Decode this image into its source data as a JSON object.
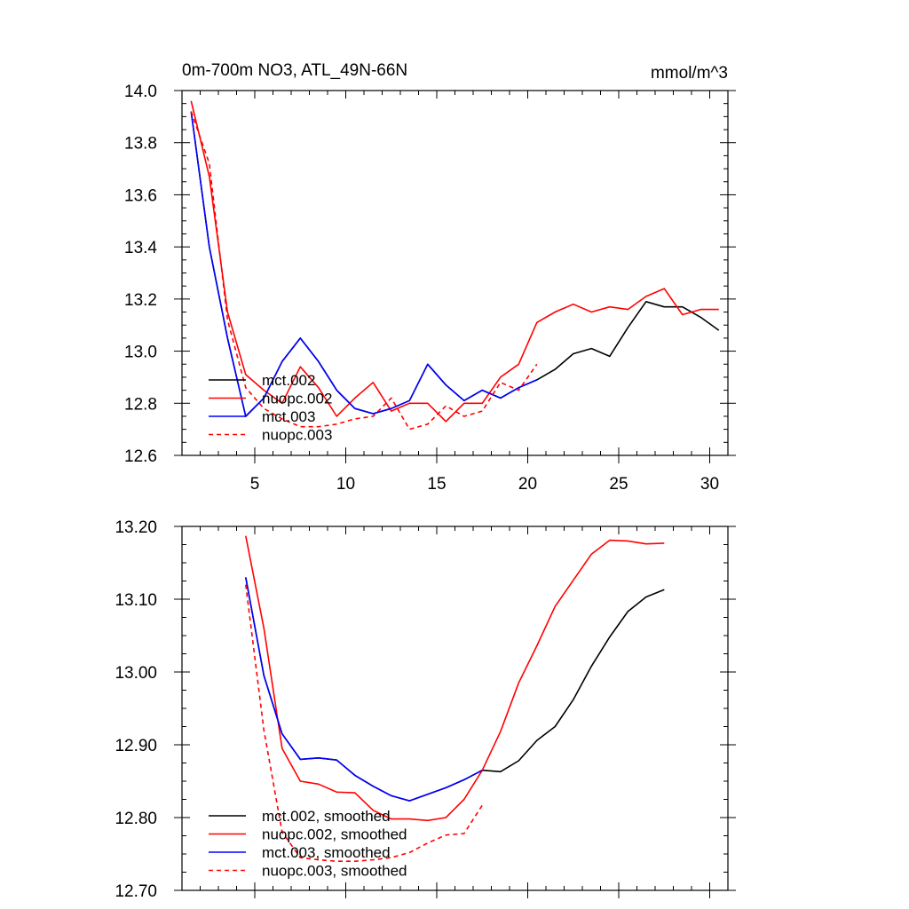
{
  "chart_data": [
    {
      "type": "line",
      "title": "0m-700m NO3, ATL_49N-66N",
      "units": "mmol/m^3",
      "xlim": [
        1,
        31
      ],
      "ylim": [
        12.6,
        14.0
      ],
      "x_ticks": [
        5,
        10,
        15,
        20,
        25,
        30
      ],
      "x_tick_labels": [
        "5",
        "10",
        "15",
        "20",
        "25",
        "30"
      ],
      "y_ticks": [
        12.6,
        12.8,
        13.0,
        13.2,
        13.4,
        13.6,
        13.8,
        14.0
      ],
      "y_tick_labels": [
        "12.6",
        "12.8",
        "13.0",
        "13.2",
        "13.4",
        "13.6",
        "13.8",
        "14.0"
      ],
      "legend_position": "bottom-left",
      "series": [
        {
          "name": "mct.002",
          "color": "#000000",
          "dash": "solid",
          "x": [
            1.5,
            2.5,
            3.5,
            4.5,
            5.5,
            6.5,
            7.5,
            8.5,
            9.5,
            10.5,
            11.5,
            12.5,
            13.5,
            14.5,
            15.5,
            16.5,
            17.5,
            18.5,
            19.5,
            20.5,
            21.5,
            22.5,
            23.5,
            24.5,
            25.5,
            26.5,
            27.5,
            28.5,
            29.5,
            30.5
          ],
          "y": [
            13.92,
            13.4,
            13.05,
            12.75,
            12.82,
            12.96,
            13.05,
            12.96,
            12.85,
            12.78,
            12.76,
            12.78,
            12.81,
            12.95,
            12.87,
            12.81,
            12.85,
            12.82,
            12.86,
            12.89,
            12.93,
            12.99,
            13.01,
            12.98,
            13.09,
            13.19,
            13.17,
            13.17,
            13.13,
            13.08
          ]
        },
        {
          "name": "nuopc.002",
          "color": "#ff0000",
          "dash": "solid",
          "x": [
            1.5,
            2.5,
            3.5,
            4.5,
            5.5,
            6.5,
            7.5,
            8.5,
            9.5,
            10.5,
            11.5,
            12.5,
            13.5,
            14.5,
            15.5,
            16.5,
            17.5,
            18.5,
            19.5,
            20.5,
            21.5,
            22.5,
            23.5,
            24.5,
            25.5,
            26.5,
            27.5,
            28.5,
            29.5,
            30.5
          ],
          "y": [
            13.96,
            13.67,
            13.15,
            12.91,
            12.85,
            12.8,
            12.94,
            12.86,
            12.75,
            12.82,
            12.88,
            12.77,
            12.8,
            12.8,
            12.73,
            12.8,
            12.8,
            12.9,
            12.95,
            13.11,
            13.15,
            13.18,
            13.15,
            13.17,
            13.16,
            13.21,
            13.24,
            13.14,
            13.16,
            13.16
          ]
        },
        {
          "name": "mct.003",
          "color": "#0000ff",
          "dash": "solid",
          "x": [
            1.5,
            2.5,
            3.5,
            4.5,
            5.5,
            6.5,
            7.5,
            8.5,
            9.5,
            10.5,
            11.5,
            12.5,
            13.5,
            14.5,
            15.5,
            16.5,
            17.5,
            18.5,
            19.5,
            20.5
          ],
          "y": [
            13.92,
            13.4,
            13.05,
            12.75,
            12.82,
            12.96,
            13.05,
            12.96,
            12.85,
            12.78,
            12.76,
            12.78,
            12.81,
            12.95,
            12.87,
            12.81,
            12.85,
            12.82,
            12.86,
            12.89
          ]
        },
        {
          "name": "nuopc.003",
          "color": "#ff0000",
          "dash": "dashed",
          "x": [
            1.5,
            2.5,
            3.5,
            4.5,
            5.5,
            6.5,
            7.5,
            8.5,
            9.5,
            10.5,
            11.5,
            12.5,
            13.5,
            14.5,
            15.5,
            16.5,
            17.5,
            18.5,
            19.5,
            20.5
          ],
          "y": [
            13.92,
            13.72,
            13.12,
            12.86,
            12.78,
            12.74,
            12.71,
            12.71,
            12.72,
            12.74,
            12.75,
            12.82,
            12.7,
            12.72,
            12.79,
            12.75,
            12.77,
            12.88,
            12.85,
            12.95
          ]
        }
      ]
    },
    {
      "type": "line",
      "title": "",
      "xlim": [
        1,
        31
      ],
      "ylim": [
        12.7,
        13.2
      ],
      "x_ticks": [
        5,
        10,
        15,
        20,
        25,
        30
      ],
      "y_ticks": [
        12.7,
        12.8,
        12.9,
        13.0,
        13.1,
        13.2
      ],
      "y_tick_labels": [
        "12.70",
        "12.80",
        "12.90",
        "13.00",
        "13.10",
        "13.20"
      ],
      "legend_position": "bottom-left",
      "series": [
        {
          "name": "mct.002, smoothed",
          "color": "#000000",
          "dash": "solid",
          "x": [
            4.5,
            5.5,
            6.5,
            7.5,
            8.5,
            9.5,
            10.5,
            11.5,
            12.5,
            13.5,
            14.5,
            15.5,
            16.5,
            17.5,
            18.5,
            19.5,
            20.5,
            21.5,
            22.5,
            23.5,
            24.5,
            25.5,
            26.5,
            27.5
          ],
          "y": [
            13.13,
            12.995,
            12.915,
            12.88,
            12.882,
            12.879,
            12.858,
            12.843,
            12.83,
            12.823,
            12.832,
            12.841,
            12.852,
            12.865,
            12.863,
            12.878,
            12.906,
            12.925,
            12.962,
            13.008,
            13.048,
            13.083,
            13.103,
            13.113
          ]
        },
        {
          "name": "nuopc.002, smoothed",
          "color": "#ff0000",
          "dash": "solid",
          "x": [
            4.5,
            5.5,
            6.5,
            7.5,
            8.5,
            9.5,
            10.5,
            11.5,
            12.5,
            13.5,
            14.5,
            15.5,
            16.5,
            17.5,
            18.5,
            19.5,
            20.5,
            21.5,
            22.5,
            23.5,
            24.5,
            25.5,
            26.5,
            27.5
          ],
          "y": [
            13.187,
            13.06,
            12.895,
            12.85,
            12.846,
            12.835,
            12.834,
            12.81,
            12.798,
            12.798,
            12.796,
            12.8,
            12.825,
            12.865,
            12.918,
            12.985,
            13.036,
            13.09,
            13.126,
            13.162,
            13.181,
            13.18,
            13.176,
            13.177
          ]
        },
        {
          "name": "mct.003, smoothed",
          "color": "#0000ff",
          "dash": "solid",
          "x": [
            4.5,
            5.5,
            6.5,
            7.5,
            8.5,
            9.5,
            10.5,
            11.5,
            12.5,
            13.5,
            14.5,
            15.5,
            16.5,
            17.5
          ],
          "y": [
            13.13,
            12.995,
            12.915,
            12.88,
            12.882,
            12.879,
            12.858,
            12.843,
            12.83,
            12.823,
            12.832,
            12.841,
            12.852,
            12.865
          ]
        },
        {
          "name": "nuopc.003, smoothed",
          "color": "#ff0000",
          "dash": "dashed",
          "x": [
            4.5,
            5.5,
            6.5,
            7.5,
            8.5,
            9.5,
            10.5,
            11.5,
            12.5,
            13.5,
            14.5,
            15.5,
            16.5,
            17.5
          ],
          "y": [
            13.12,
            12.92,
            12.78,
            12.745,
            12.742,
            12.74,
            12.74,
            12.742,
            12.745,
            12.752,
            12.765,
            12.776,
            12.778,
            12.817
          ]
        }
      ]
    }
  ]
}
